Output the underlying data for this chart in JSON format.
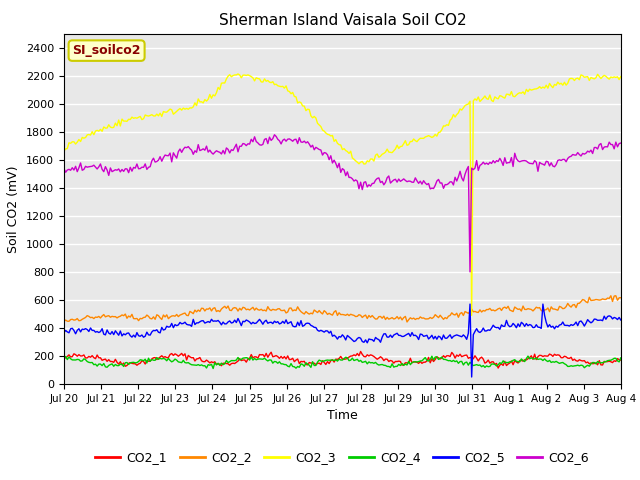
{
  "title": "Sherman Island Vaisala Soil CO2",
  "xlabel": "Time",
  "ylabel": "Soil CO2 (mV)",
  "ylim": [
    0,
    2500
  ],
  "yticks": [
    0,
    200,
    400,
    600,
    800,
    1000,
    1200,
    1400,
    1600,
    1800,
    2000,
    2200,
    2400
  ],
  "legend_label": "SI_soilco2",
  "legend_bg": "#ffffcc",
  "legend_edge": "#cccc00",
  "legend_text_color": "#880000",
  "bg_color": "#e8e8e8",
  "line_colors": {
    "CO2_1": "#ff0000",
    "CO2_2": "#ff8800",
    "CO2_3": "#ffff00",
    "CO2_4": "#00cc00",
    "CO2_5": "#0000ff",
    "CO2_6": "#cc00cc"
  },
  "xtick_labels": [
    "Jul 20",
    "Jul 21",
    "Jul 22",
    "Jul 23",
    "Jul 24",
    "Jul 25",
    "Jul 26",
    "Jul 27",
    "Jul 28",
    "Jul 29",
    "Jul 30",
    "Jul 31",
    "Aug 1",
    "Aug 2",
    "Aug 3",
    "Aug 4"
  ]
}
